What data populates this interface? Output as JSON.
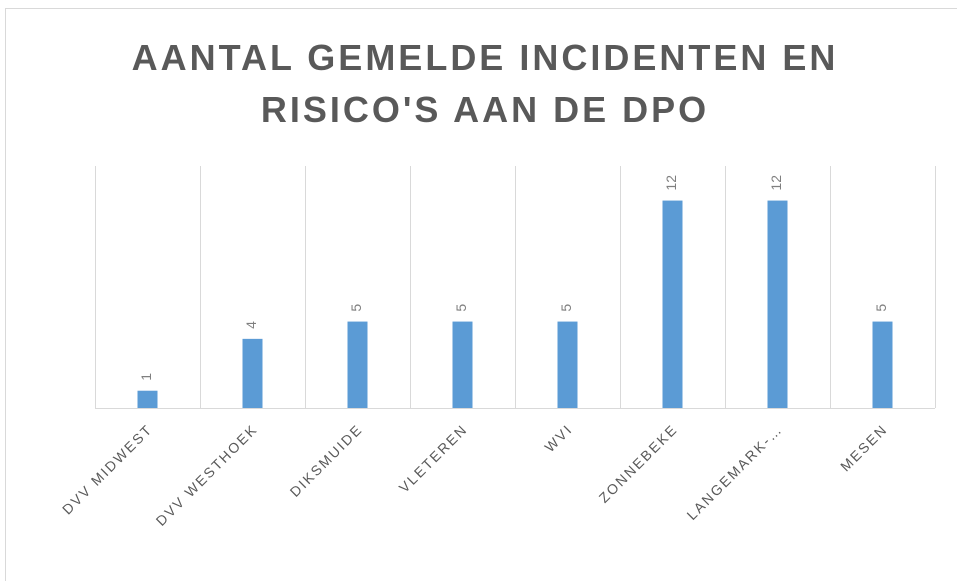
{
  "chart_data": {
    "type": "bar",
    "title": [
      "AANTAL GEMELDE INCIDENTEN EN",
      "RISICO'S AAN DE DPO"
    ],
    "categories": [
      "DVV MIDWEST",
      "DVV WESTHOEK",
      "DIKSMUIDE",
      "VLETEREN",
      "WVI",
      "ZONNEBEKE",
      "LANGEMARK-…",
      "MESEN"
    ],
    "values": [
      1,
      4,
      5,
      5,
      5,
      12,
      12,
      5
    ],
    "color": "#5b9bd5",
    "ylim": [
      0,
      14
    ],
    "grid": "vertical",
    "data_labels": true
  }
}
